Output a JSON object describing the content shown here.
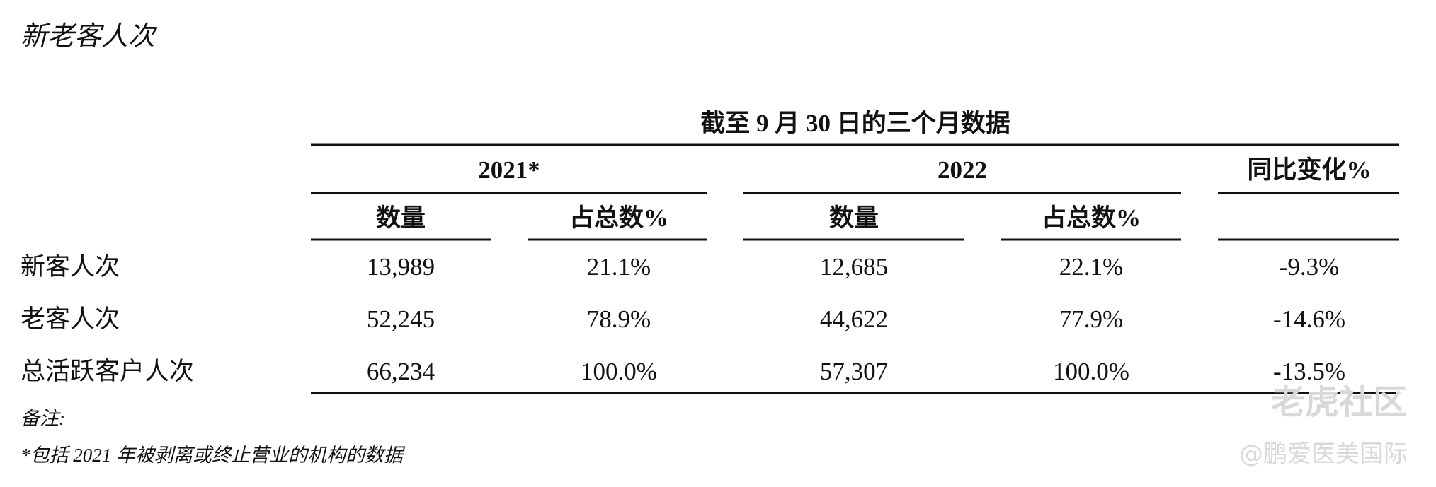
{
  "title": "新老客人次",
  "table": {
    "header_top": "截至 9 月 30 日的三个月数据",
    "groups": [
      "2021*",
      "2022",
      "同比变化%"
    ],
    "subheaders": [
      "数量",
      "占总数%",
      "数量",
      "占总数%"
    ],
    "rows": [
      [
        "新客人次",
        "13,989",
        "21.1%",
        "12,685",
        "22.1%",
        "-9.3%"
      ],
      [
        "老客人次",
        "52,245",
        "78.9%",
        "44,622",
        "77.9%",
        "-14.6%"
      ],
      [
        "总活跃客户人次",
        "66,234",
        "100.0%",
        "57,307",
        "100.0%",
        "-13.5%"
      ]
    ]
  },
  "note_label": "备注:",
  "footnote": "*包括 2021 年被剥离或终止营业的机构的数据",
  "watermark": {
    "brand": "老虎社区",
    "author": "@鹏爱医美国际"
  }
}
